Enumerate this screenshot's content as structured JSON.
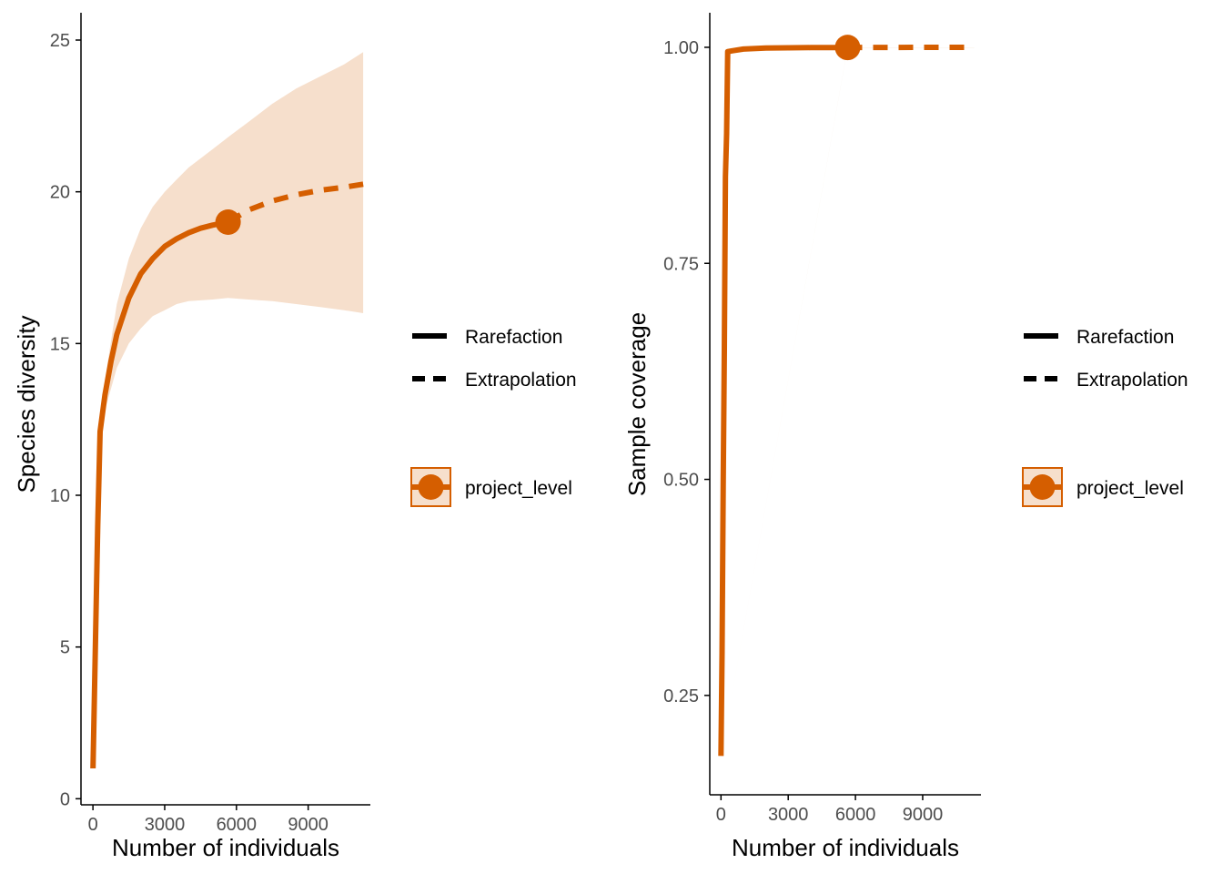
{
  "colors": {
    "series": "#D55E00",
    "band": "#F6DFCC",
    "axis": "#000000",
    "tick_label": "#4d4d4d"
  },
  "legend": {
    "method_items": [
      {
        "label": "Rarefaction",
        "linetype": "solid"
      },
      {
        "label": "Extrapolation",
        "linetype": "dashed"
      }
    ],
    "assemblage_label": "project_level"
  },
  "chart_data": [
    {
      "type": "line",
      "xlabel": "Number of individuals",
      "ylabel": "Species diversity",
      "xlim": [
        -500,
        11600
      ],
      "ylim": [
        -0.2,
        25.9
      ],
      "x_ticks": [
        0,
        3000,
        6000,
        9000
      ],
      "y_ticks": [
        0,
        5,
        10,
        15,
        20,
        25
      ],
      "y_tick_labels": [
        "0",
        "5",
        "10",
        "15",
        "20",
        "25"
      ],
      "reference_point": {
        "x": 5650,
        "y": 19
      },
      "series": [
        {
          "linetype": "solid",
          "x": [
            1,
            100,
            200,
            300,
            500,
            750,
            1000,
            1500,
            2000,
            2500,
            3000,
            3500,
            4000,
            4500,
            5000,
            5650
          ],
          "y": [
            1,
            5,
            9,
            12.1,
            13.3,
            14.4,
            15.3,
            16.5,
            17.3,
            17.8,
            18.2,
            18.45,
            18.65,
            18.8,
            18.9,
            19
          ]
        },
        {
          "linetype": "dashed",
          "x": [
            5650,
            6500,
            7500,
            8500,
            9500,
            10500,
            11300
          ],
          "y": [
            19,
            19.4,
            19.7,
            19.9,
            20.05,
            20.15,
            20.25
          ]
        }
      ],
      "ci_band": {
        "x": [
          1,
          300,
          500,
          1000,
          1500,
          2000,
          2500,
          3000,
          3500,
          4000,
          5000,
          5650,
          6500,
          7500,
          8500,
          9500,
          10500,
          11300
        ],
        "lower": [
          1,
          12.1,
          12.8,
          14.2,
          15.0,
          15.5,
          15.9,
          16.1,
          16.3,
          16.4,
          16.45,
          16.5,
          16.45,
          16.4,
          16.3,
          16.2,
          16.1,
          16.0
        ],
        "upper": [
          1,
          12.1,
          13.8,
          16.3,
          17.8,
          18.8,
          19.5,
          20.0,
          20.4,
          20.8,
          21.4,
          21.8,
          22.3,
          22.9,
          23.4,
          23.8,
          24.2,
          24.6
        ]
      }
    },
    {
      "type": "line",
      "xlabel": "Number of individuals",
      "ylabel": "Sample coverage",
      "xlim": [
        -500,
        11600
      ],
      "ylim": [
        0.135,
        1.04
      ],
      "x_ticks": [
        0,
        3000,
        6000,
        9000
      ],
      "y_ticks": [
        0.25,
        0.5,
        0.75,
        1.0
      ],
      "y_tick_labels": [
        "0.25",
        "0.50",
        "0.75",
        "1.00"
      ],
      "reference_point": {
        "x": 5650,
        "y": 0.9998
      },
      "series": [
        {
          "linetype": "solid",
          "x": [
            1,
            50,
            100,
            150,
            200,
            250,
            300,
            500,
            1000,
            2000,
            3000,
            4000,
            5650
          ],
          "y": [
            0.18,
            0.3,
            0.5,
            0.65,
            0.85,
            0.9,
            0.995,
            0.996,
            0.998,
            0.9991,
            0.9994,
            0.9996,
            0.9998
          ]
        },
        {
          "linetype": "dashed",
          "x": [
            5650,
            7500,
            9500,
            11300
          ],
          "y": [
            0.9998,
            0.9999,
            1.0,
            1.0
          ]
        }
      ],
      "ci_band": {
        "x": [
          1,
          5650,
          11300
        ],
        "lower": [
          0.18,
          0.9995,
          0.9998
        ],
        "upper": [
          0.18,
          1.0,
          1.0
        ]
      }
    }
  ]
}
